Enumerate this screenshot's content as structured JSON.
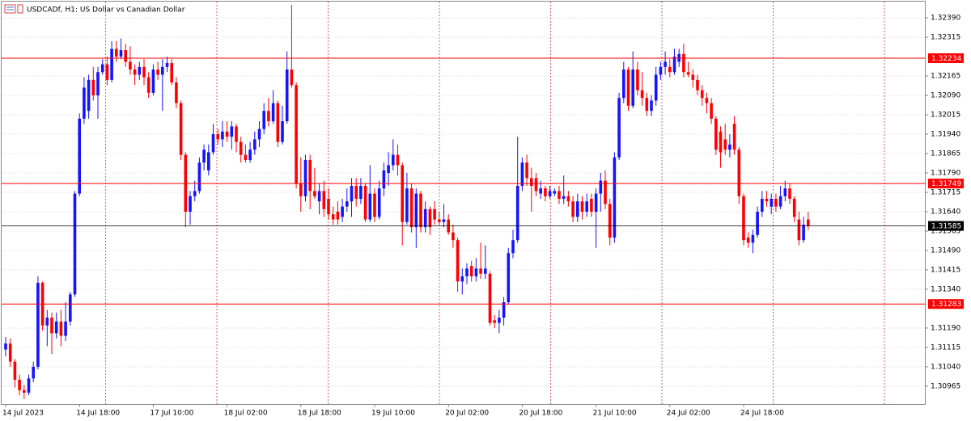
{
  "chart_data": {
    "type": "candlestick",
    "title": "USDCADf, H1:  US Dollar vs Canadian Dollar",
    "categories": [
      "14 Jul 2023",
      null,
      null,
      null,
      null,
      null,
      null,
      null,
      null,
      null,
      null,
      null,
      null,
      null,
      null,
      null,
      "14 Jul 18:00",
      null,
      null,
      null,
      null,
      null,
      null,
      null,
      null,
      null,
      null,
      null,
      null,
      null,
      null,
      null,
      "17 Jul 10:00",
      null,
      null,
      null,
      null,
      null,
      null,
      null,
      null,
      null,
      null,
      null,
      null,
      null,
      null,
      null,
      "18 Jul 02:00",
      null,
      null,
      null,
      null,
      null,
      null,
      null,
      null,
      null,
      null,
      null,
      null,
      null,
      null,
      null,
      "18 Jul 18:00",
      null,
      null,
      null,
      null,
      null,
      null,
      null,
      null,
      null,
      null,
      null,
      null,
      null,
      null,
      null,
      "19 Jul 10:00",
      null,
      null,
      null,
      null,
      null,
      null,
      null,
      null,
      null,
      null,
      null,
      null,
      null,
      null,
      null,
      "20 Jul 02:00",
      null,
      null,
      null,
      null,
      null,
      null,
      null,
      null,
      null,
      null,
      null,
      null,
      null,
      null,
      null,
      "20 Jul 18:00",
      null,
      null,
      null,
      null,
      null,
      null,
      null,
      null,
      null,
      null,
      null,
      null,
      null,
      null,
      null,
      "21 Jul 10:00",
      null,
      null,
      null,
      null,
      null,
      null,
      null,
      null,
      null,
      null,
      null,
      null,
      null,
      null,
      null,
      "24 Jul 02:00",
      null,
      null,
      null,
      null,
      null,
      null,
      null,
      null,
      null,
      null,
      null,
      null,
      null,
      null,
      null,
      "24 Jul 18:00",
      null,
      null,
      null,
      null,
      null,
      null,
      null,
      null,
      null,
      null,
      null,
      null,
      null,
      null
    ],
    "open": [
      1.31107,
      1.3113,
      1.3106,
      1.3099,
      1.3095,
      1.3094,
      1.30995,
      1.3104,
      1.31365,
      1.312,
      1.3123,
      1.3117,
      1.31215,
      1.3116,
      1.31215,
      1.3132,
      1.3171,
      1.32,
      1.3203,
      1.3215,
      1.3209,
      1.3218,
      1.3221,
      1.3215,
      1.3227,
      1.3224,
      1.32265,
      1.3222,
      1.3219,
      1.3217,
      1.322,
      1.3216,
      1.321,
      1.3219,
      1.3217,
      1.322,
      1.32215,
      1.3214,
      1.3206,
      1.3186,
      1.3164,
      1.317,
      1.3172,
      1.3183,
      1.318,
      1.3187,
      1.3194,
      1.3192,
      1.3195,
      1.3193,
      1.3197,
      1.3191,
      1.3186,
      1.3184,
      1.3188,
      1.3192,
      1.3196,
      1.3203,
      1.3199,
      1.3206,
      1.3191,
      1.3199,
      1.3219,
      1.3213,
      1.3175,
      1.317,
      1.3184,
      1.3172,
      1.3168,
      1.3172,
      1.3169,
      1.3163,
      1.3164,
      1.3162,
      1.3166,
      1.3168,
      1.3174,
      1.3169,
      1.3174,
      1.3161,
      1.3171,
      1.3162,
      1.3173,
      1.3179,
      1.3182,
      1.3186,
      1.3182,
      1.316,
      1.3173,
      1.3158,
      1.3171,
      1.3158,
      1.3165,
      1.3165,
      1.3161,
      1.316,
      1.3161,
      1.3156,
      1.3153,
      1.3137,
      1.3139,
      1.3143,
      1.3139,
      1.3142,
      1.314,
      1.314,
      1.3122,
      1.3121,
      1.3123,
      1.3129,
      1.3148,
      1.3153,
      1.3174,
      1.3183,
      1.3177,
      1.3177,
      1.3171,
      1.3173,
      1.317,
      1.3171,
      1.3172,
      1.3169,
      1.317,
      1.3168,
      1.3162,
      1.3168,
      1.3164,
      1.3169,
      1.3164,
      1.3171,
      1.3176,
      1.3167,
      1.3154,
      1.3185,
      1.3208,
      1.3219,
      1.3205,
      1.3219,
      1.3211,
      1.3208,
      1.3203,
      1.3207,
      1.3217,
      1.322,
      1.322,
      1.3218,
      1.3222,
      1.3225,
      1.3218,
      1.3217,
      1.3215,
      1.3211,
      1.3208,
      1.3206,
      1.32,
      1.3195,
      1.3192,
      1.3188,
      1.3198,
      1.3188,
      1.317,
      1.3154,
      1.3152,
      1.3155,
      1.3164,
      1.3169,
      1.3166,
      1.3169,
      1.3166,
      1.317,
      1.3173,
      1.3169,
      1.3161,
      1.3153,
      1.3161
    ],
    "high": [
      1.31155,
      1.3115,
      1.3107,
      1.3101,
      1.3097,
      1.3101,
      1.3106,
      1.3139,
      1.3137,
      1.3126,
      1.3125,
      1.3125,
      1.3126,
      1.3129,
      1.3133,
      1.3172,
      1.3202,
      1.3216,
      1.3217,
      1.322,
      1.322,
      1.3223,
      1.3224,
      1.323,
      1.323,
      1.3231,
      1.3229,
      1.3228,
      1.3221,
      1.3222,
      1.3223,
      1.3218,
      1.3221,
      1.3222,
      1.3223,
      1.3224,
      1.3223,
      1.3216,
      1.3207,
      1.3187,
      1.3172,
      1.3176,
      1.3185,
      1.319,
      1.319,
      1.3198,
      1.3196,
      1.3199,
      1.3199,
      1.3199,
      1.3198,
      1.3193,
      1.319,
      1.3191,
      1.3195,
      1.3199,
      1.3206,
      1.3208,
      1.3211,
      1.3207,
      1.3205,
      1.3226,
      1.3244,
      1.3214,
      1.3185,
      1.3186,
      1.3186,
      1.3181,
      1.3175,
      1.3176,
      1.3173,
      1.3166,
      1.3168,
      1.3169,
      1.3173,
      1.3177,
      1.3177,
      1.3177,
      1.3175,
      1.3182,
      1.3173,
      1.3176,
      1.3183,
      1.3187,
      1.3192,
      1.319,
      1.3183,
      1.3179,
      1.3175,
      1.3173,
      1.3172,
      1.3168,
      1.3166,
      1.3168,
      1.3164,
      1.3167,
      1.3163,
      1.3159,
      1.3154,
      1.3142,
      1.3144,
      1.3145,
      1.3146,
      1.3152,
      1.3151,
      1.3141,
      1.3124,
      1.3126,
      1.3131,
      1.315,
      1.3157,
      1.3193,
      1.3185,
      1.3186,
      1.3181,
      1.3179,
      1.3176,
      1.3174,
      1.3174,
      1.3173,
      1.3174,
      1.3178,
      1.3172,
      1.317,
      1.3171,
      1.317,
      1.3171,
      1.3171,
      1.3173,
      1.3179,
      1.318,
      1.3169,
      1.3187,
      1.321,
      1.3222,
      1.322,
      1.3226,
      1.3222,
      1.3218,
      1.321,
      1.3209,
      1.322,
      1.3222,
      1.3226,
      1.3223,
      1.3227,
      1.3227,
      1.3229,
      1.3222,
      1.3219,
      1.3217,
      1.3213,
      1.321,
      1.3208,
      1.3201,
      1.3197,
      1.3198,
      1.3194,
      1.3201,
      1.3189,
      1.3171,
      1.3156,
      1.3157,
      1.3166,
      1.3172,
      1.3172,
      1.3171,
      1.3171,
      1.3174,
      1.3176,
      1.3175,
      1.317,
      1.3164,
      1.3162,
      1.3164
    ],
    "low": [
      1.3108,
      1.3104,
      1.3096,
      1.3093,
      1.30915,
      1.3093,
      1.3098,
      1.3103,
      1.3118,
      1.3112,
      1.3109,
      1.3115,
      1.3112,
      1.3114,
      1.312,
      1.3131,
      1.317,
      1.3198,
      1.32,
      1.3207,
      1.32,
      1.3217,
      1.3213,
      1.3214,
      1.3222,
      1.3223,
      1.322,
      1.3217,
      1.3213,
      1.3215,
      1.3213,
      1.3208,
      1.3209,
      1.3215,
      1.3203,
      1.3218,
      1.3213,
      1.3204,
      1.3184,
      1.3158,
      1.3159,
      1.3168,
      1.3171,
      1.318,
      1.3178,
      1.3186,
      1.319,
      1.3189,
      1.3191,
      1.3188,
      1.3187,
      1.3183,
      1.3183,
      1.3183,
      1.3186,
      1.3189,
      1.3194,
      1.3197,
      1.3198,
      1.3189,
      1.319,
      1.3198,
      1.3212,
      1.3173,
      1.3164,
      1.3168,
      1.3165,
      1.3169,
      1.3163,
      1.3162,
      1.3161,
      1.3159,
      1.3159,
      1.316,
      1.3164,
      1.3162,
      1.3166,
      1.3167,
      1.316,
      1.316,
      1.316,
      1.3161,
      1.317,
      1.3174,
      1.318,
      1.3178,
      1.3151,
      1.3159,
      1.3156,
      1.315,
      1.3156,
      1.3156,
      1.3155,
      1.3159,
      1.3159,
      1.3158,
      1.3155,
      1.315,
      1.3133,
      1.3132,
      1.3136,
      1.3137,
      1.3137,
      1.3138,
      1.3138,
      1.312,
      1.3119,
      1.3117,
      1.312,
      1.3128,
      1.3146,
      1.3152,
      1.3172,
      1.3174,
      1.3164,
      1.317,
      1.3169,
      1.3168,
      1.3169,
      1.317,
      1.3167,
      1.3167,
      1.3166,
      1.316,
      1.316,
      1.3161,
      1.3162,
      1.3162,
      1.315,
      1.3164,
      1.3165,
      1.3151,
      1.3152,
      1.3184,
      1.3206,
      1.3203,
      1.3204,
      1.3209,
      1.3205,
      1.3201,
      1.3201,
      1.3205,
      1.3215,
      1.3217,
      1.3216,
      1.3217,
      1.322,
      1.3216,
      1.3216,
      1.3212,
      1.3209,
      1.3205,
      1.3202,
      1.3198,
      1.3186,
      1.3181,
      1.3186,
      1.3185,
      1.3186,
      1.3167,
      1.3151,
      1.315,
      1.3148,
      1.3154,
      1.3162,
      1.3166,
      1.3163,
      1.3164,
      1.3165,
      1.3168,
      1.3167,
      1.316,
      1.3151,
      1.3152,
      1.3157
    ],
    "close": [
      1.3113,
      1.3106,
      1.3099,
      1.3095,
      1.3094,
      1.30995,
      1.3104,
      1.31365,
      1.312,
      1.3123,
      1.3117,
      1.31215,
      1.3116,
      1.31215,
      1.3132,
      1.3171,
      1.32,
      1.3212,
      1.3215,
      1.3209,
      1.3218,
      1.3221,
      1.3215,
      1.3227,
      1.3224,
      1.32265,
      1.3222,
      1.3219,
      1.3217,
      1.322,
      1.3216,
      1.321,
      1.3219,
      1.3217,
      1.322,
      1.32215,
      1.3214,
      1.3206,
      1.3186,
      1.3164,
      1.317,
      1.3172,
      1.3183,
      1.3188,
      1.3187,
      1.3194,
      1.3192,
      1.3195,
      1.3193,
      1.3197,
      1.3191,
      1.3186,
      1.3184,
      1.3188,
      1.3192,
      1.3196,
      1.3203,
      1.3199,
      1.3206,
      1.3191,
      1.3199,
      1.3219,
      1.3213,
      1.3175,
      1.317,
      1.3184,
      1.3172,
      1.317,
      1.3172,
      1.3165,
      1.3163,
      1.3161,
      1.3161,
      1.3166,
      1.3168,
      1.3174,
      1.3169,
      1.3174,
      1.3161,
      1.3171,
      1.3162,
      1.3173,
      1.318,
      1.3182,
      1.3186,
      1.3182,
      1.316,
      1.3173,
      1.3158,
      1.3171,
      1.3158,
      1.3165,
      1.3158,
      1.3161,
      1.316,
      1.3161,
      1.3156,
      1.3153,
      1.3137,
      1.3139,
      1.3142,
      1.3139,
      1.3142,
      1.314,
      1.3142,
      1.3121,
      1.3121,
      1.3123,
      1.3129,
      1.3148,
      1.3153,
      1.3174,
      1.3183,
      1.3177,
      1.3174,
      1.3172,
      1.3173,
      1.317,
      1.3172,
      1.3172,
      1.3169,
      1.317,
      1.3168,
      1.3162,
      1.3168,
      1.3164,
      1.3168,
      1.3164,
      1.3171,
      1.3176,
      1.3167,
      1.3154,
      1.3185,
      1.3208,
      1.3219,
      1.3205,
      1.3219,
      1.3211,
      1.3208,
      1.3203,
      1.3207,
      1.3217,
      1.322,
      1.3222,
      1.3218,
      1.3224,
      1.3225,
      1.3218,
      1.3217,
      1.3215,
      1.3211,
      1.3208,
      1.3206,
      1.32,
      1.3188,
      1.3187,
      1.3188,
      1.319,
      1.3188,
      1.317,
      1.3153,
      1.3152,
      1.3155,
      1.3164,
      1.3169,
      1.3168,
      1.3169,
      1.3166,
      1.317,
      1.3173,
      1.3169,
      1.3162,
      1.3153,
      1.3159,
      1.31585
    ],
    "up_color": "#1414ff",
    "down_color": "#ff0000",
    "ylim": [
      1.30896,
      1.32459
    ],
    "yticks": [
      {
        "value": 1.3239,
        "label": "1.32390"
      },
      {
        "value": 1.32315,
        "label": "1.32315"
      },
      {
        "value": 1.32165,
        "label": "1.32165"
      },
      {
        "value": 1.3209,
        "label": "1.32090"
      },
      {
        "value": 1.32015,
        "label": "1.32015"
      },
      {
        "value": 1.3194,
        "label": "1.31940"
      },
      {
        "value": 1.31865,
        "label": "1.31865"
      },
      {
        "value": 1.3179,
        "label": "1.31790"
      },
      {
        "value": 1.31715,
        "label": "1.31715"
      },
      {
        "value": 1.3164,
        "label": "1.31640"
      },
      {
        "value": 1.31565,
        "label": "1.31565"
      },
      {
        "value": 1.3149,
        "label": "1.31490"
      },
      {
        "value": 1.31415,
        "label": "1.31415"
      },
      {
        "value": 1.3134,
        "label": "1.31340"
      },
      {
        "value": 1.3119,
        "label": "1.31190"
      },
      {
        "value": 1.31115,
        "label": "1.31115"
      },
      {
        "value": 1.3104,
        "label": "1.31040"
      },
      {
        "value": 1.30965,
        "label": "1.30965"
      }
    ],
    "grid": true,
    "levels": [
      {
        "value": 1.32234,
        "color": "#ff0000"
      },
      {
        "value": 1.31749,
        "color": "#ff0000"
      },
      {
        "value": 1.31283,
        "color": "#ff0000"
      }
    ],
    "current_price": 1.31585,
    "current_price_color": "#000000"
  }
}
